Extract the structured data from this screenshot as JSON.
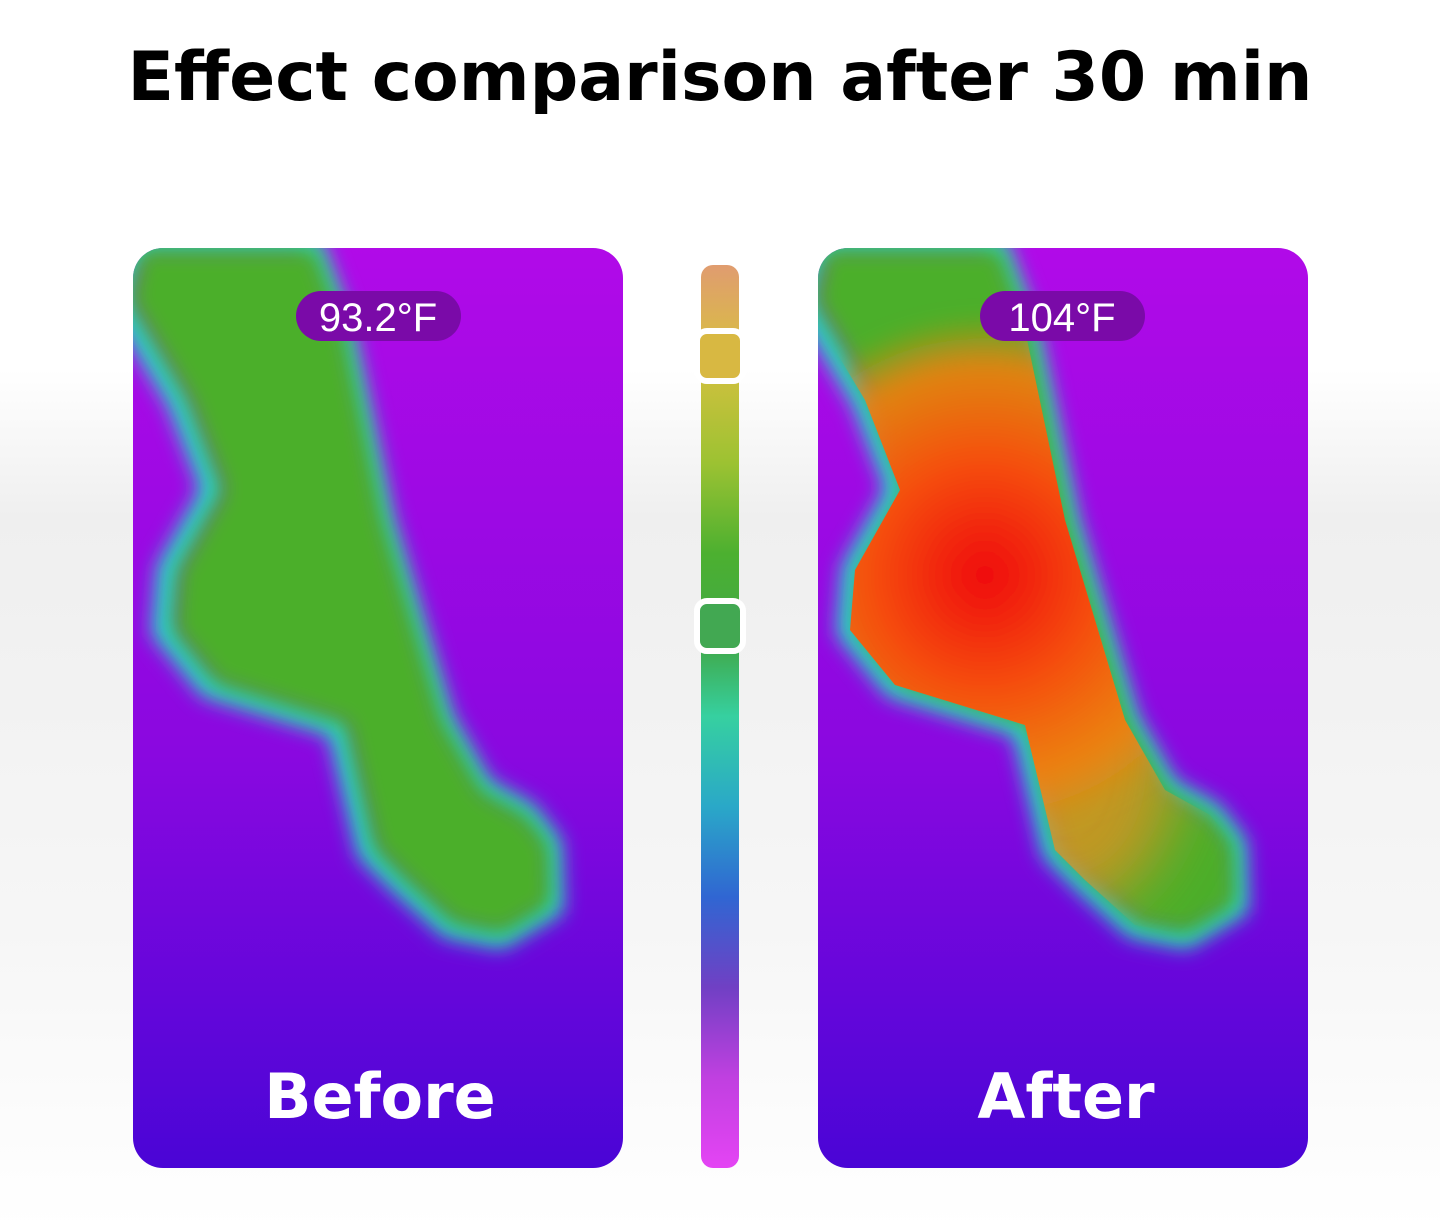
{
  "title": "Effect comparison after 30 min",
  "panels": [
    {
      "temperature": "93.2°F",
      "label": "Before"
    },
    {
      "temperature": "104°F",
      "label": "After"
    }
  ]
}
